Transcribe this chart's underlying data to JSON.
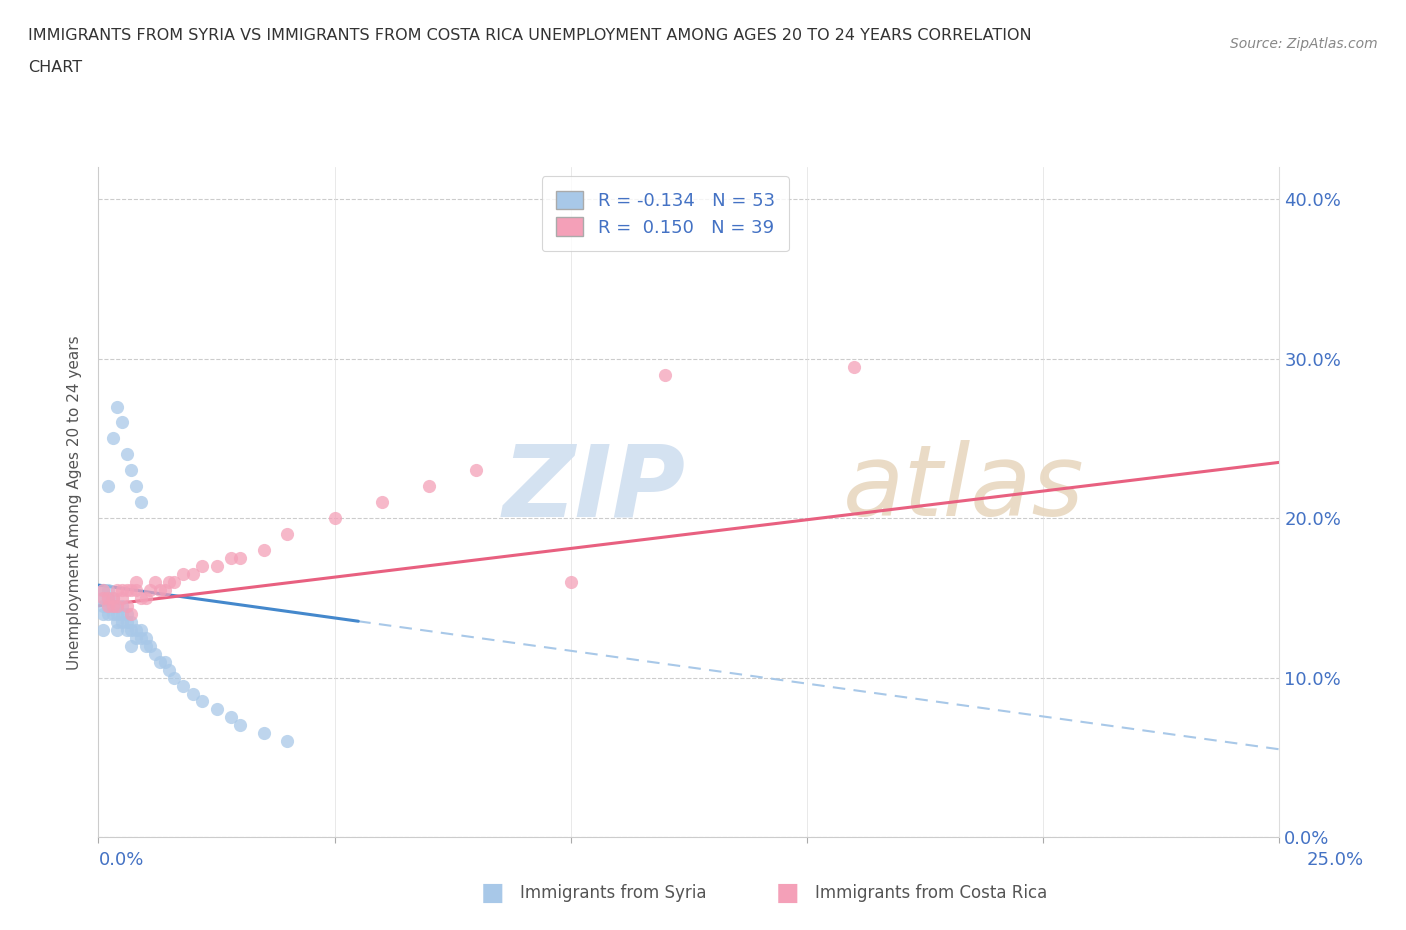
{
  "title_line1": "IMMIGRANTS FROM SYRIA VS IMMIGRANTS FROM COSTA RICA UNEMPLOYMENT AMONG AGES 20 TO 24 YEARS CORRELATION",
  "title_line2": "CHART",
  "source": "Source: ZipAtlas.com",
  "ylabel": "Unemployment Among Ages 20 to 24 years",
  "yticks_labels": [
    "0.0%",
    "10.0%",
    "20.0%",
    "30.0%",
    "40.0%"
  ],
  "ytick_vals": [
    0.0,
    0.1,
    0.2,
    0.3,
    0.4
  ],
  "xrange": [
    0.0,
    0.25
  ],
  "yrange": [
    0.0,
    0.42
  ],
  "color_syria": "#a8c8e8",
  "color_costarica": "#f4a0b8",
  "color_syria_line_solid": "#4488cc",
  "color_syria_line_dash": "#a8c8e8",
  "color_costarica_line": "#e86080",
  "color_axis_labels": "#4472c4",
  "watermark_zip_color": "#d0dff0",
  "watermark_atlas_color": "#e8d8c0",
  "syria_x": [
    0.001,
    0.001,
    0.001,
    0.001,
    0.001,
    0.002,
    0.002,
    0.002,
    0.002,
    0.003,
    0.003,
    0.003,
    0.004,
    0.004,
    0.004,
    0.004,
    0.005,
    0.005,
    0.005,
    0.006,
    0.006,
    0.006,
    0.007,
    0.007,
    0.007,
    0.008,
    0.008,
    0.009,
    0.009,
    0.01,
    0.01,
    0.011,
    0.012,
    0.013,
    0.014,
    0.015,
    0.016,
    0.018,
    0.02,
    0.022,
    0.025,
    0.028,
    0.03,
    0.035,
    0.04,
    0.002,
    0.003,
    0.004,
    0.005,
    0.006,
    0.007,
    0.008,
    0.009
  ],
  "syria_y": [
    0.13,
    0.14,
    0.145,
    0.15,
    0.155,
    0.14,
    0.145,
    0.15,
    0.155,
    0.14,
    0.145,
    0.15,
    0.13,
    0.135,
    0.14,
    0.145,
    0.135,
    0.14,
    0.145,
    0.13,
    0.135,
    0.14,
    0.12,
    0.13,
    0.135,
    0.125,
    0.13,
    0.125,
    0.13,
    0.12,
    0.125,
    0.12,
    0.115,
    0.11,
    0.11,
    0.105,
    0.1,
    0.095,
    0.09,
    0.085,
    0.08,
    0.075,
    0.07,
    0.065,
    0.06,
    0.22,
    0.25,
    0.27,
    0.26,
    0.24,
    0.23,
    0.22,
    0.21
  ],
  "costarica_x": [
    0.001,
    0.001,
    0.002,
    0.002,
    0.003,
    0.003,
    0.004,
    0.004,
    0.005,
    0.005,
    0.006,
    0.006,
    0.007,
    0.007,
    0.008,
    0.008,
    0.009,
    0.01,
    0.011,
    0.012,
    0.013,
    0.014,
    0.015,
    0.016,
    0.018,
    0.02,
    0.022,
    0.025,
    0.028,
    0.03,
    0.035,
    0.04,
    0.05,
    0.06,
    0.07,
    0.08,
    0.1,
    0.12,
    0.16
  ],
  "costarica_y": [
    0.15,
    0.155,
    0.145,
    0.15,
    0.145,
    0.15,
    0.155,
    0.145,
    0.15,
    0.155,
    0.145,
    0.155,
    0.14,
    0.155,
    0.155,
    0.16,
    0.15,
    0.15,
    0.155,
    0.16,
    0.155,
    0.155,
    0.16,
    0.16,
    0.165,
    0.165,
    0.17,
    0.17,
    0.175,
    0.175,
    0.18,
    0.19,
    0.2,
    0.21,
    0.22,
    0.23,
    0.16,
    0.29,
    0.295
  ],
  "syria_line_x_start": 0.0,
  "syria_line_x_solid_end": 0.055,
  "syria_line_x_end": 0.25,
  "costarica_line_x_start": 0.0,
  "costarica_line_x_end": 0.25,
  "syria_line_y_at_0": 0.158,
  "syria_line_y_at_end": 0.055,
  "costarica_line_y_at_0": 0.145,
  "costarica_line_y_at_end": 0.235
}
